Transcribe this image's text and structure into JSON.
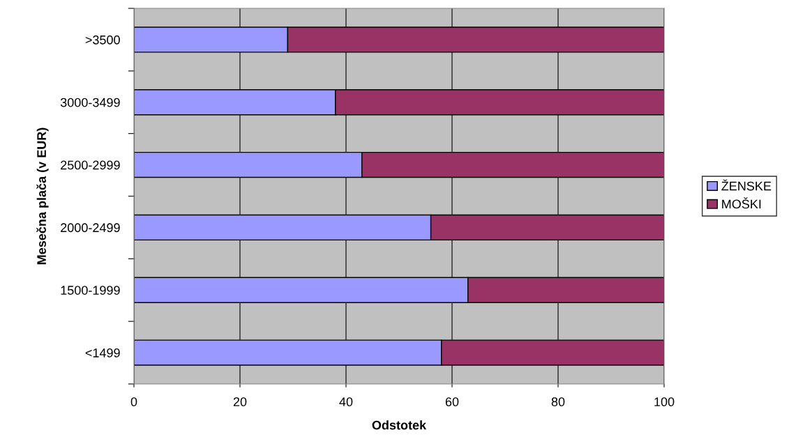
{
  "chart_data": {
    "type": "bar",
    "orientation": "horizontal",
    "stacked": true,
    "xlabel": "Odstotek",
    "ylabel": "Mesečna plača (v EUR)",
    "categories": [
      ">3500",
      "3000-3499",
      "2500-2999",
      "2000-2499",
      "1500-1999",
      "<1499"
    ],
    "series": [
      {
        "name": "ŽENSKE",
        "color": "#9999ff",
        "values": [
          29,
          38,
          43,
          56,
          63,
          58
        ]
      },
      {
        "name": "MOŠKI",
        "color": "#993366",
        "values": [
          71,
          62,
          57,
          44,
          37,
          42
        ]
      }
    ],
    "xlim": [
      0,
      100
    ],
    "xticks": [
      0,
      20,
      40,
      60,
      80,
      100
    ],
    "grid": "x",
    "legend": "right"
  }
}
